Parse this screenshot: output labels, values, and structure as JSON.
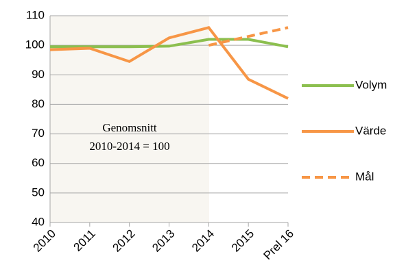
{
  "chart_data": {
    "type": "line",
    "categories": [
      "2010",
      "2011",
      "2012",
      "2013",
      "2014",
      "2015",
      "Prel 16"
    ],
    "series": [
      {
        "name": "Volym",
        "color": "#8cbf4f",
        "dash": false,
        "values": [
          99.5,
          99.5,
          99.5,
          99.7,
          102,
          102,
          99.5
        ]
      },
      {
        "name": "Värde",
        "color": "#f79646",
        "dash": false,
        "values": [
          98.5,
          99,
          94.5,
          102.5,
          106,
          88.5,
          82
        ]
      },
      {
        "name": "Mål",
        "color": "#f79646",
        "dash": true,
        "values": [
          null,
          null,
          null,
          null,
          100,
          103,
          106
        ]
      }
    ],
    "annotation": [
      "Genomsnitt",
      "2010-2014 = 100"
    ],
    "ylim": [
      40,
      110
    ],
    "yticks": [
      40,
      50,
      60,
      70,
      80,
      90,
      100,
      110
    ],
    "grid": true
  }
}
